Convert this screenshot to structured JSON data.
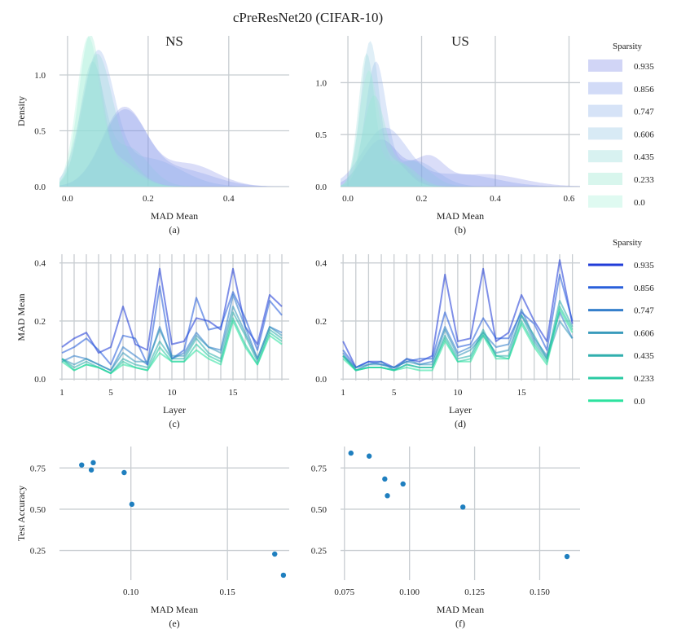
{
  "figure": {
    "title": "cPreResNet20 (CIFAR-10)",
    "legend_title": "Sparsity",
    "legend_title_2": "Sparsity",
    "sparsity_levels": [
      "0.935",
      "0.856",
      "0.747",
      "0.606",
      "0.435",
      "0.233",
      "0.0"
    ],
    "kde_fill_colors": [
      "#7b86e6",
      "#7f98e8",
      "#8aaee8",
      "#8fc4e2",
      "#8ed9d6",
      "#8fe6cc",
      "#a3f0d6"
    ],
    "line_colors": [
      "#1533d6",
      "#1e56d8",
      "#2a78c8",
      "#2f96b8",
      "#26abaa",
      "#1fc79e",
      "#22e09a"
    ]
  },
  "chart_data": [
    {
      "id": "a",
      "type": "area",
      "title": "NS",
      "xlabel": "MAD Mean",
      "ylabel": "Density",
      "caption": "(a)",
      "xlim": [
        -0.02,
        0.55
      ],
      "ylim": [
        0,
        1.35
      ],
      "xticks": [
        0.0,
        0.2,
        0.4
      ],
      "xtick_labels": [
        "0.0",
        "0.2",
        "0.4"
      ],
      "yticks": [
        0.0,
        0.5,
        1.0
      ],
      "ytick_labels": [
        "0.0",
        "0.5",
        "1.0"
      ],
      "series": [
        {
          "name": "0.935",
          "components": [
            [
              0.14,
              0.055,
              0.7
            ],
            [
              0.3,
              0.07,
              0.2
            ]
          ]
        },
        {
          "name": "0.856",
          "components": [
            [
              0.14,
              0.055,
              0.66
            ],
            [
              0.28,
              0.08,
              0.15
            ]
          ]
        },
        {
          "name": "0.747",
          "components": [
            [
              0.075,
              0.04,
              1.15
            ],
            [
              0.2,
              0.08,
              0.25
            ]
          ]
        },
        {
          "name": "0.606",
          "components": [
            [
              0.06,
              0.03,
              1.05
            ],
            [
              0.15,
              0.05,
              0.35
            ]
          ]
        },
        {
          "name": "0.435",
          "components": [
            [
              0.07,
              0.035,
              1.0
            ],
            [
              0.12,
              0.05,
              0.3
            ]
          ]
        },
        {
          "name": "0.233",
          "components": [
            [
              0.055,
              0.028,
              1.28
            ],
            [
              0.12,
              0.05,
              0.2
            ]
          ]
        },
        {
          "name": "0.0",
          "components": [
            [
              0.05,
              0.028,
              1.25
            ],
            [
              0.12,
              0.05,
              0.25
            ]
          ]
        }
      ]
    },
    {
      "id": "b",
      "type": "area",
      "title": "US",
      "xlabel": "MAD Mean",
      "ylabel": "",
      "caption": "(b)",
      "xlim": [
        -0.02,
        0.63
      ],
      "ylim": [
        0,
        1.45
      ],
      "xticks": [
        0.0,
        0.2,
        0.4,
        0.6
      ],
      "xtick_labels": [
        "0.0",
        "0.2",
        "0.4",
        "0.6"
      ],
      "yticks": [
        0.0,
        0.5,
        1.0
      ],
      "ytick_labels": [
        "0.0",
        "0.5",
        "1.0"
      ],
      "series": [
        {
          "name": "0.935",
          "components": [
            [
              0.09,
              0.05,
              0.45
            ],
            [
              0.22,
              0.04,
              0.25
            ],
            [
              0.37,
              0.1,
              0.12
            ]
          ]
        },
        {
          "name": "0.856",
          "components": [
            [
              0.1,
              0.06,
              0.55
            ],
            [
              0.3,
              0.1,
              0.12
            ]
          ]
        },
        {
          "name": "0.747",
          "components": [
            [
              0.075,
              0.028,
              1.15
            ],
            [
              0.18,
              0.06,
              0.25
            ]
          ]
        },
        {
          "name": "0.606",
          "components": [
            [
              0.06,
              0.025,
              1.38
            ],
            [
              0.17,
              0.05,
              0.25
            ]
          ]
        },
        {
          "name": "0.435",
          "components": [
            [
              0.05,
              0.022,
              1.25
            ],
            [
              0.13,
              0.04,
              0.25
            ]
          ]
        },
        {
          "name": "0.233",
          "components": [
            [
              0.07,
              0.03,
              0.85
            ],
            [
              0.15,
              0.04,
              0.2
            ]
          ]
        },
        {
          "name": "0.0",
          "components": [
            [
              0.055,
              0.025,
              1.05
            ],
            [
              0.12,
              0.04,
              0.25
            ]
          ]
        }
      ]
    },
    {
      "id": "c",
      "type": "line",
      "title": "",
      "xlabel": "Layer",
      "ylabel": "MAD Mean",
      "caption": "(c)",
      "xlim": [
        0.8,
        19.6
      ],
      "ylim": [
        -0.005,
        0.43
      ],
      "xticks": [
        1,
        5,
        10,
        15
      ],
      "xtick_labels": [
        "1",
        "5",
        "10",
        "15"
      ],
      "yticks": [
        0.0,
        0.2,
        0.4
      ],
      "ytick_labels": [
        "0.0",
        "0.2",
        "0.4"
      ],
      "x": [
        1,
        2,
        3,
        4,
        5,
        6,
        7,
        8,
        9,
        10,
        11,
        12,
        13,
        14,
        15,
        16,
        17,
        18,
        19
      ],
      "series": [
        {
          "name": "0.935",
          "values": [
            0.11,
            0.14,
            0.16,
            0.09,
            0.11,
            0.25,
            0.12,
            0.1,
            0.38,
            0.12,
            0.13,
            0.21,
            0.2,
            0.17,
            0.38,
            0.18,
            0.12,
            0.29,
            0.25
          ]
        },
        {
          "name": "0.856",
          "values": [
            0.09,
            0.11,
            0.14,
            0.1,
            0.05,
            0.15,
            0.14,
            0.05,
            0.32,
            0.07,
            0.1,
            0.28,
            0.17,
            0.18,
            0.3,
            0.21,
            0.1,
            0.27,
            0.22
          ]
        },
        {
          "name": "0.747",
          "values": [
            0.06,
            0.08,
            0.07,
            0.05,
            0.03,
            0.11,
            0.08,
            0.05,
            0.18,
            0.07,
            0.09,
            0.16,
            0.11,
            0.1,
            0.29,
            0.18,
            0.07,
            0.18,
            0.16
          ]
        },
        {
          "name": "0.606",
          "values": [
            0.07,
            0.05,
            0.07,
            0.05,
            0.03,
            0.09,
            0.06,
            0.06,
            0.17,
            0.08,
            0.08,
            0.15,
            0.11,
            0.09,
            0.25,
            0.16,
            0.07,
            0.18,
            0.15
          ]
        },
        {
          "name": "0.435",
          "values": [
            0.07,
            0.04,
            0.06,
            0.04,
            0.02,
            0.07,
            0.05,
            0.04,
            0.13,
            0.07,
            0.07,
            0.14,
            0.09,
            0.07,
            0.23,
            0.15,
            0.06,
            0.17,
            0.14
          ]
        },
        {
          "name": "0.233",
          "values": [
            0.07,
            0.03,
            0.05,
            0.04,
            0.02,
            0.06,
            0.04,
            0.03,
            0.11,
            0.06,
            0.06,
            0.12,
            0.08,
            0.06,
            0.21,
            0.12,
            0.05,
            0.16,
            0.13
          ]
        },
        {
          "name": "0.0",
          "values": [
            0.06,
            0.03,
            0.05,
            0.04,
            0.02,
            0.05,
            0.04,
            0.03,
            0.09,
            0.06,
            0.06,
            0.1,
            0.07,
            0.05,
            0.2,
            0.11,
            0.05,
            0.15,
            0.12
          ]
        }
      ]
    },
    {
      "id": "d",
      "type": "line",
      "title": "",
      "xlabel": "Layer",
      "ylabel": "",
      "caption": "(d)",
      "xlim": [
        0.8,
        19.6
      ],
      "ylim": [
        -0.005,
        0.43
      ],
      "xticks": [
        1,
        5,
        10,
        15
      ],
      "xtick_labels": [
        "1",
        "5",
        "10",
        "15"
      ],
      "yticks": [
        0.0,
        0.2,
        0.4
      ],
      "ytick_labels": [
        "0.0",
        "0.2",
        "0.4"
      ],
      "x": [
        1,
        2,
        3,
        4,
        5,
        6,
        7,
        8,
        9,
        10,
        11,
        12,
        13,
        14,
        15,
        16,
        17,
        18,
        19
      ],
      "series": [
        {
          "name": "0.935",
          "values": [
            0.13,
            0.04,
            0.06,
            0.06,
            0.04,
            0.07,
            0.06,
            0.08,
            0.36,
            0.13,
            0.14,
            0.38,
            0.13,
            0.16,
            0.29,
            0.2,
            0.13,
            0.41,
            0.19
          ]
        },
        {
          "name": "0.856",
          "values": [
            0.1,
            0.04,
            0.06,
            0.05,
            0.04,
            0.06,
            0.07,
            0.07,
            0.23,
            0.11,
            0.12,
            0.21,
            0.14,
            0.14,
            0.23,
            0.19,
            0.1,
            0.36,
            0.2
          ]
        },
        {
          "name": "0.747",
          "values": [
            0.09,
            0.03,
            0.05,
            0.06,
            0.03,
            0.07,
            0.05,
            0.06,
            0.18,
            0.09,
            0.11,
            0.16,
            0.11,
            0.12,
            0.24,
            0.14,
            0.08,
            0.23,
            0.14
          ]
        },
        {
          "name": "0.606",
          "values": [
            0.08,
            0.04,
            0.05,
            0.05,
            0.04,
            0.06,
            0.05,
            0.05,
            0.17,
            0.08,
            0.1,
            0.15,
            0.09,
            0.1,
            0.22,
            0.13,
            0.07,
            0.2,
            0.14
          ]
        },
        {
          "name": "0.435",
          "values": [
            0.08,
            0.03,
            0.04,
            0.04,
            0.03,
            0.05,
            0.04,
            0.04,
            0.15,
            0.07,
            0.08,
            0.17,
            0.08,
            0.08,
            0.22,
            0.15,
            0.07,
            0.27,
            0.18
          ]
        },
        {
          "name": "0.233",
          "values": [
            0.08,
            0.03,
            0.04,
            0.04,
            0.03,
            0.05,
            0.04,
            0.04,
            0.14,
            0.06,
            0.07,
            0.16,
            0.08,
            0.07,
            0.2,
            0.12,
            0.06,
            0.25,
            0.17
          ]
        },
        {
          "name": "0.0",
          "values": [
            0.07,
            0.03,
            0.04,
            0.04,
            0.03,
            0.04,
            0.03,
            0.03,
            0.13,
            0.06,
            0.06,
            0.15,
            0.07,
            0.07,
            0.19,
            0.11,
            0.05,
            0.24,
            0.16
          ]
        }
      ]
    },
    {
      "id": "e",
      "type": "scatter",
      "title": "",
      "xlabel": "MAD Mean",
      "ylabel": "Test Accuracy",
      "caption": "(e)",
      "xlim": [
        0.063,
        0.182
      ],
      "ylim": [
        0.07,
        0.88
      ],
      "xticks": [
        0.1,
        0.15
      ],
      "xtick_labels": [
        "0.10",
        "0.15"
      ],
      "yticks": [
        0.25,
        0.5,
        0.75
      ],
      "ytick_labels": [
        "0.25",
        "0.50",
        "0.75"
      ],
      "x": [
        0.0745,
        0.0795,
        0.0805,
        0.0965,
        0.1005,
        0.1745,
        0.179
      ],
      "y": [
        0.768,
        0.738,
        0.782,
        0.722,
        0.53,
        0.228,
        0.1
      ],
      "color": "#1f7fbf"
    },
    {
      "id": "f",
      "type": "scatter",
      "title": "",
      "xlabel": "MAD Mean",
      "ylabel": "",
      "caption": "(f)",
      "xlim": [
        0.0735,
        0.1655
      ],
      "ylim": [
        0.07,
        0.88
      ],
      "xticks": [
        0.075,
        0.1,
        0.125,
        0.15
      ],
      "xtick_labels": [
        "0.075",
        "0.100",
        "0.125",
        "0.150"
      ],
      "yticks": [
        0.25,
        0.5,
        0.75
      ],
      "ytick_labels": [
        "0.25",
        "0.50",
        "0.75"
      ],
      "x": [
        0.0775,
        0.0845,
        0.0905,
        0.0915,
        0.0975,
        0.1205,
        0.1605
      ],
      "y": [
        0.84,
        0.822,
        0.683,
        0.582,
        0.653,
        0.513,
        0.213
      ],
      "color": "#1f7fbf"
    }
  ]
}
